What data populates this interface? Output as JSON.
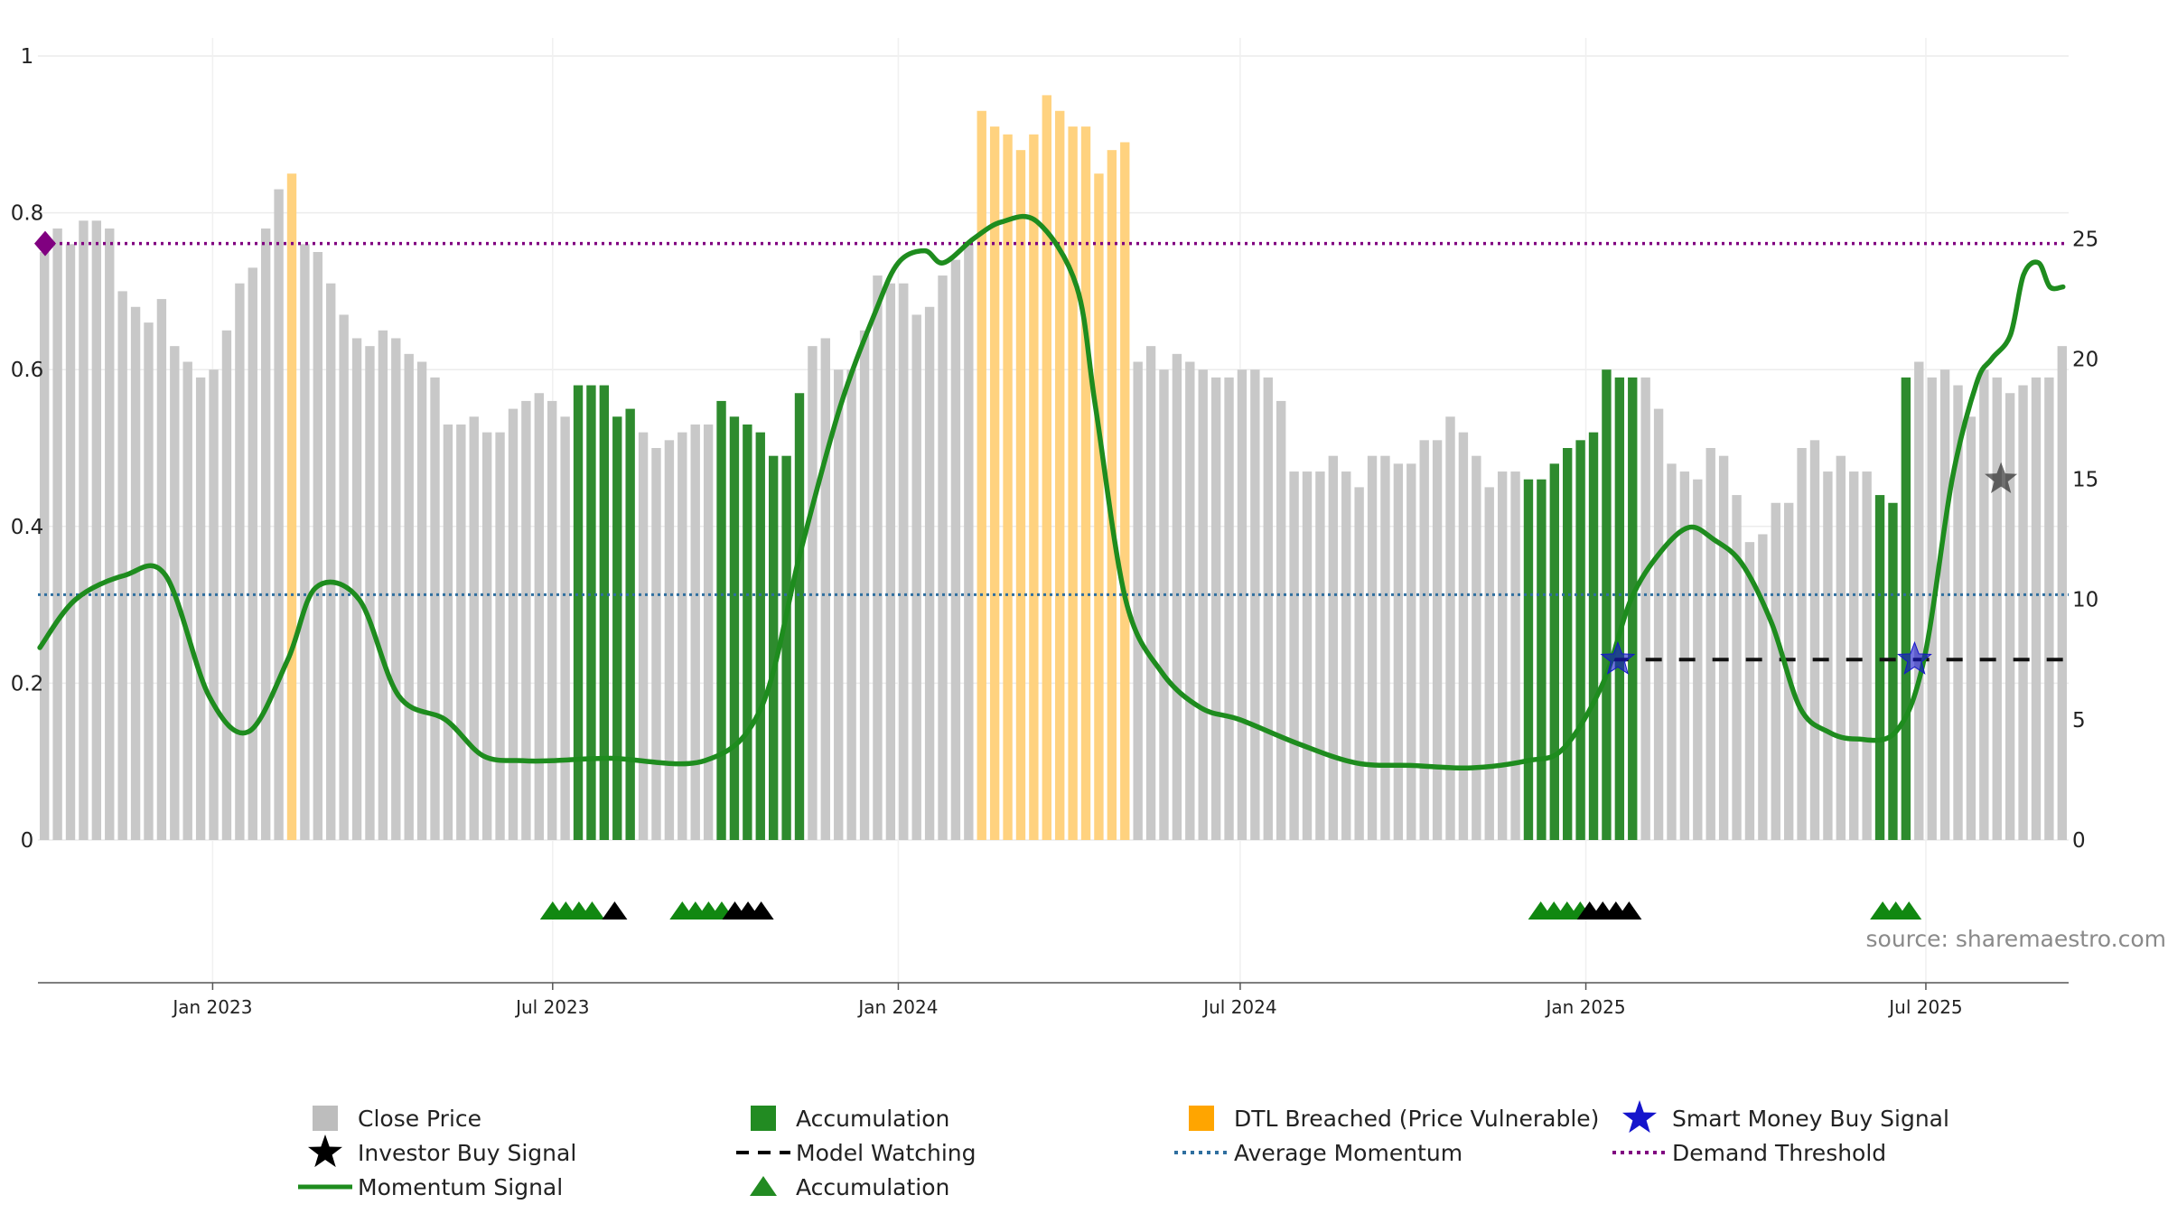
{
  "source_text": "source: sharemaestro.com",
  "chart_data": {
    "type": "bar",
    "x_tick_labels": [
      "Jan 2023",
      "Jul 2023",
      "Jan 2024",
      "Jul 2024",
      "Jan 2025",
      "Jul 2025"
    ],
    "x_tick_dates": [
      "2023-01-01",
      "2023-07-01",
      "2024-01-01",
      "2024-07-01",
      "2025-01-01",
      "2025-07-01"
    ],
    "x_range": [
      "2022-09-30",
      "2025-09-15"
    ],
    "left_axis": {
      "range": [
        0,
        1
      ],
      "ticks": [
        0,
        0.2,
        0.4,
        0.6,
        0.8,
        1
      ],
      "tick_labels": [
        "0",
        "0.2",
        "0.4",
        "0.6",
        "0.8",
        "1"
      ]
    },
    "right_axis": {
      "range": [
        0,
        32.6
      ],
      "ticks": [
        0,
        5,
        10,
        15,
        20,
        25
      ],
      "tick_labels": [
        "0",
        "5",
        "10",
        "15",
        "20",
        "25"
      ]
    },
    "grid": true,
    "legend_position": "bottom",
    "colors": {
      "close": "#c8c8c8",
      "accumulation": "#2e8b2e",
      "dtl": "#ffd27f",
      "momentum": "#1e8c1e",
      "demand": "#800080",
      "average": "#2f6f9f",
      "smart_money": "#1515cc",
      "investor": "#222222",
      "model_watching": "#111111"
    },
    "close_price": {
      "name": "Close Price",
      "values": [
        0.75,
        0.78,
        0.76,
        0.79,
        0.79,
        0.78,
        0.7,
        0.68,
        0.66,
        0.69,
        0.63,
        0.61,
        0.59,
        0.6,
        0.65,
        0.71,
        0.73,
        0.78,
        0.83,
        0.85,
        0.76,
        0.75,
        0.71,
        0.67,
        0.64,
        0.63,
        0.65,
        0.64,
        0.62,
        0.61,
        0.59,
        0.53,
        0.53,
        0.54,
        0.52,
        0.52,
        0.55,
        0.56,
        0.57,
        0.56,
        0.54,
        0.58,
        0.58,
        0.58,
        0.54,
        0.55,
        0.52,
        0.5,
        0.51,
        0.52,
        0.53,
        0.53,
        0.56,
        0.54,
        0.53,
        0.52,
        0.49,
        0.49,
        0.57,
        0.63,
        0.64,
        0.6,
        0.6,
        0.65,
        0.72,
        0.71,
        0.71,
        0.67,
        0.68,
        0.72,
        0.74,
        0.76,
        0.93,
        0.91,
        0.9,
        0.88,
        0.9,
        0.95,
        0.93,
        0.91,
        0.91,
        0.85,
        0.88,
        0.89,
        0.61,
        0.63,
        0.6,
        0.62,
        0.61,
        0.6,
        0.59,
        0.59,
        0.6,
        0.6,
        0.59,
        0.56,
        0.47,
        0.47,
        0.47,
        0.49,
        0.47,
        0.45,
        0.49,
        0.49,
        0.48,
        0.48,
        0.51,
        0.51,
        0.54,
        0.52,
        0.49,
        0.45,
        0.47,
        0.47,
        0.46,
        0.46,
        0.48,
        0.5,
        0.51,
        0.52,
        0.6,
        0.59,
        0.59,
        0.59,
        0.55,
        0.48,
        0.47,
        0.46,
        0.5,
        0.49,
        0.44,
        0.38,
        0.39,
        0.43,
        0.43,
        0.5,
        0.51,
        0.47,
        0.49,
        0.47,
        0.47,
        0.44,
        0.43,
        0.59,
        0.61,
        0.59,
        0.6,
        0.58,
        0.54,
        0.6,
        0.59,
        0.57,
        0.58,
        0.59,
        0.59,
        0.63
      ]
    },
    "accumulation_bars": {
      "name": "Accumulation",
      "indices": [
        41,
        42,
        43,
        44,
        45,
        52,
        53,
        54,
        55,
        56,
        57,
        58,
        114,
        115,
        116,
        117,
        118,
        119,
        120,
        121,
        122,
        141,
        142,
        143
      ]
    },
    "dtl_bars": {
      "name": "DTL Breached (Price Vulnerable)",
      "indices": [
        19,
        72,
        73,
        74,
        75,
        76,
        77,
        78,
        79,
        80,
        81,
        82,
        83
      ]
    },
    "momentum_signal": {
      "name": "Momentum Signal",
      "dates": [
        "2022-10-01",
        "2022-10-20",
        "2022-11-15",
        "2022-12-07",
        "2022-12-30",
        "2023-01-20",
        "2023-02-10",
        "2023-02-25",
        "2023-03-20",
        "2023-04-10",
        "2023-05-05",
        "2023-05-25",
        "2023-06-15",
        "2023-07-01",
        "2023-08-01",
        "2023-09-20",
        "2023-10-20",
        "2023-11-10",
        "2023-12-01",
        "2023-12-20",
        "2024-01-01",
        "2024-01-15",
        "2024-01-25",
        "2024-02-10",
        "2024-02-25",
        "2024-03-15",
        "2024-04-05",
        "2024-04-15",
        "2024-05-01",
        "2024-05-20",
        "2024-06-10",
        "2024-07-01",
        "2024-08-01",
        "2024-09-01",
        "2024-10-01",
        "2024-11-01",
        "2024-12-01",
        "2024-12-20",
        "2025-01-10",
        "2025-01-25",
        "2025-02-10",
        "2025-02-25",
        "2025-03-10",
        "2025-03-25",
        "2025-04-10",
        "2025-04-25",
        "2025-05-10",
        "2025-05-25",
        "2025-06-15",
        "2025-06-30",
        "2025-07-15",
        "2025-07-28",
        "2025-08-05",
        "2025-08-15",
        "2025-08-22",
        "2025-08-30",
        "2025-09-05",
        "2025-09-12"
      ],
      "values": [
        8.0,
        10.0,
        11.0,
        11.0,
        6.0,
        4.5,
        7.5,
        10.5,
        10.0,
        6.0,
        5.0,
        3.5,
        3.3,
        3.3,
        3.4,
        3.3,
        5.5,
        12.0,
        18.0,
        22.0,
        24.0,
        24.5,
        24.0,
        25.0,
        25.7,
        25.7,
        23.0,
        18.0,
        10.0,
        7.0,
        5.5,
        5.0,
        4.0,
        3.2,
        3.1,
        3.0,
        3.3,
        3.8,
        6.5,
        10.0,
        12.0,
        13.0,
        12.5,
        11.5,
        9.0,
        5.5,
        4.5,
        4.2,
        4.5,
        7.5,
        15.0,
        19.0,
        20.0,
        21.0,
        23.5,
        24.0,
        23.0,
        23.0
      ]
    },
    "demand_threshold": {
      "name": "Demand Threshold",
      "value": 24.8
    },
    "average_momentum": {
      "name": "Average Momentum",
      "value": 10.2
    },
    "model_watching": {
      "name": "Model Watching",
      "value": 7.5,
      "start": "2025-01-15",
      "end": "2025-09-15"
    },
    "smart_money_signals": {
      "name": "Smart Money Buy Signal",
      "dates": [
        "2025-01-18",
        "2025-06-25"
      ],
      "values": [
        7.5,
        7.5
      ]
    },
    "investor_signals": {
      "name": "Investor Buy Signal",
      "dates": [
        "2025-08-10"
      ],
      "values": [
        15.0
      ]
    },
    "accumulation_markers": {
      "name": "Accumulation",
      "green_dates": [
        "2023-07-01",
        "2023-07-08",
        "2023-07-15",
        "2023-07-22",
        "2023-09-08",
        "2023-09-15",
        "2023-09-22",
        "2023-09-29",
        "2024-12-08",
        "2024-12-15",
        "2024-12-22",
        "2024-12-29",
        "2025-06-08",
        "2025-06-15",
        "2025-06-22"
      ],
      "black_dates": [
        "2023-08-03",
        "2023-10-06",
        "2023-10-13",
        "2023-10-20",
        "2025-01-03",
        "2025-01-10",
        "2025-01-17",
        "2025-01-24"
      ]
    },
    "legend": [
      {
        "label": "Close Price",
        "symbol": "square",
        "color": "#bdbdbd"
      },
      {
        "label": "Accumulation",
        "symbol": "square",
        "color": "#228b22"
      },
      {
        "label": "DTL Breached (Price Vulnerable)",
        "symbol": "square",
        "color": "#ffa500"
      },
      {
        "label": "Smart Money Buy Signal",
        "symbol": "star",
        "color": "#1515cc"
      },
      {
        "label": "Investor Buy Signal",
        "symbol": "star",
        "color": "#000000"
      },
      {
        "label": "Model Watching",
        "symbol": "dash",
        "color": "#000000"
      },
      {
        "label": "Average Momentum",
        "symbol": "dot",
        "color": "#2f6f9f"
      },
      {
        "label": "Demand Threshold",
        "symbol": "dot",
        "color": "#800080"
      },
      {
        "label": "Momentum Signal",
        "symbol": "line",
        "color": "#1e8c1e"
      },
      {
        "label": "Accumulation",
        "symbol": "triangle",
        "color": "#228b22"
      }
    ]
  }
}
